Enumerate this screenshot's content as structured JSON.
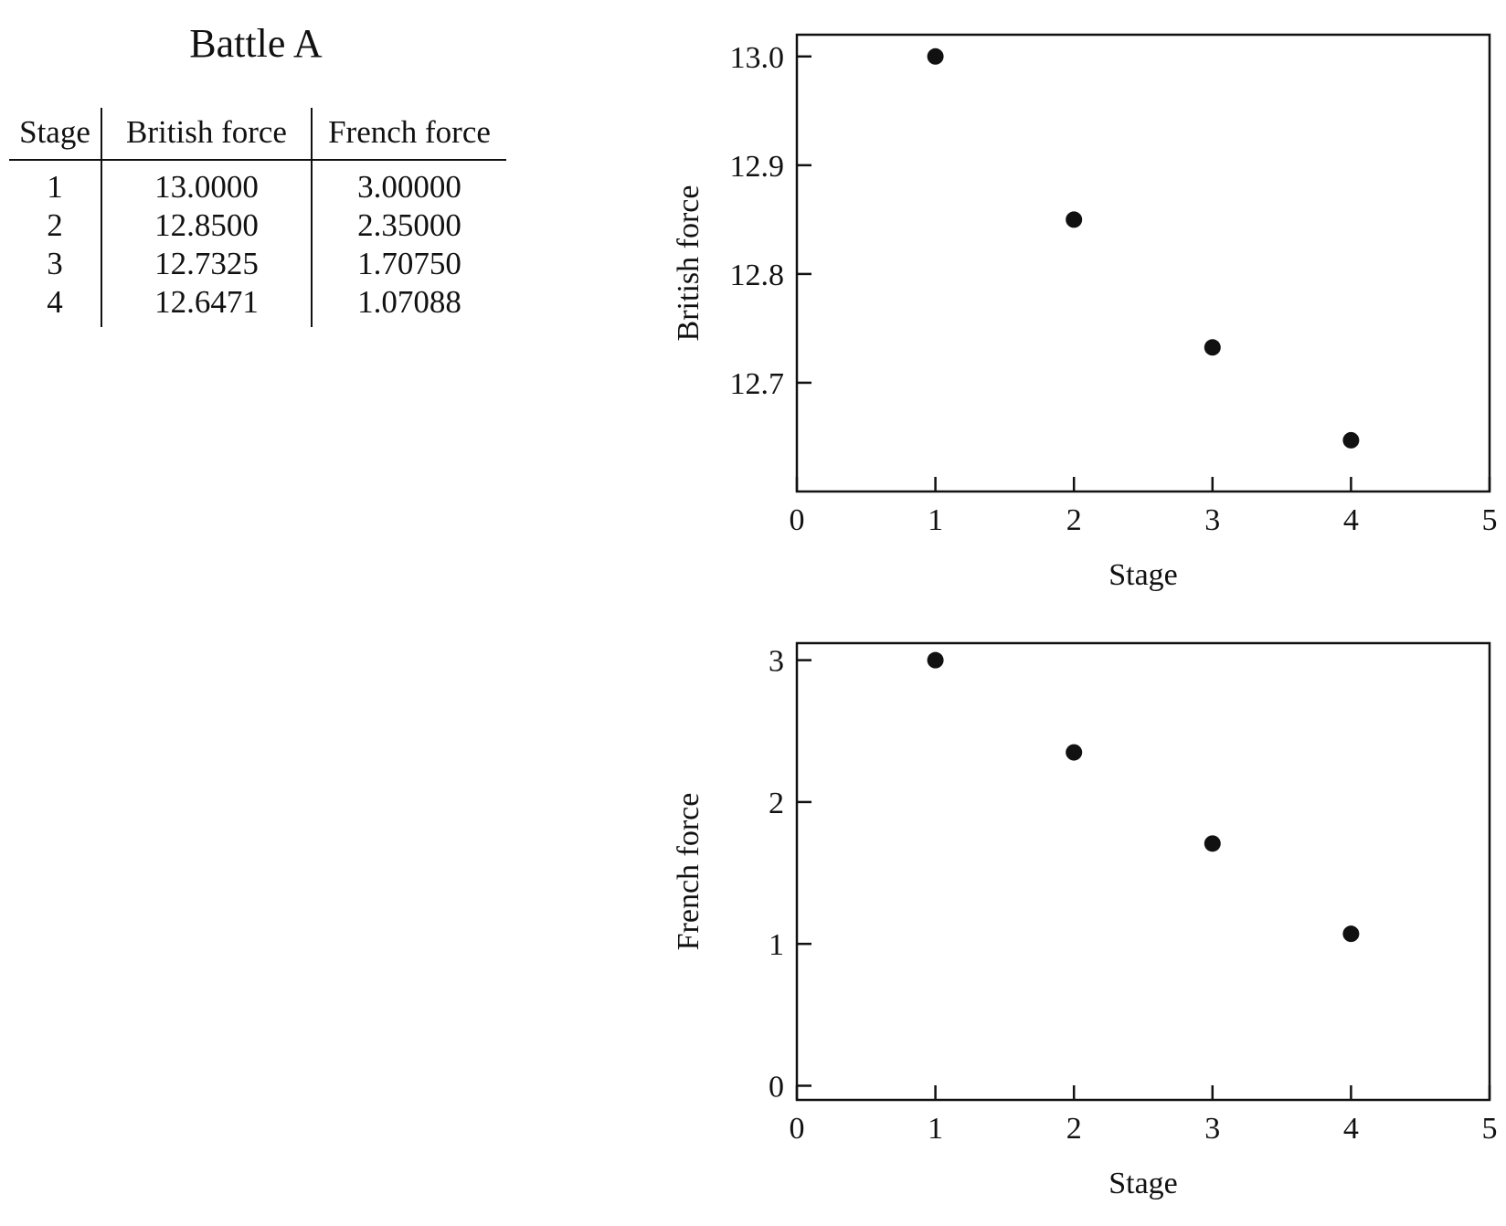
{
  "table": {
    "title": "Battle A",
    "headers": [
      "Stage",
      "British force",
      "French force"
    ],
    "rows": [
      [
        "1",
        "13.0000",
        "3.00000"
      ],
      [
        "2",
        "12.8500",
        "2.35000"
      ],
      [
        "3",
        "12.7325",
        "1.70750"
      ],
      [
        "4",
        "12.6471",
        "1.07088"
      ]
    ]
  },
  "chart_data": [
    {
      "type": "scatter",
      "xlabel": "Stage",
      "ylabel": "British force",
      "x": [
        1,
        2,
        3,
        4
      ],
      "y": [
        13.0,
        12.85,
        12.7325,
        12.6471
      ],
      "xlim": [
        0,
        5
      ],
      "ylim": [
        12.6,
        13.02
      ],
      "xticks": [
        0,
        1,
        2,
        3,
        4,
        5
      ],
      "xtick_labels": [
        "0",
        "1",
        "2",
        "3",
        "4",
        "5"
      ],
      "yticks": [
        12.7,
        12.8,
        12.9,
        13.0
      ],
      "ytick_labels": [
        "12.7",
        "12.8",
        "12.9",
        "13.0"
      ],
      "grid": false,
      "marker_color": "#111111"
    },
    {
      "type": "scatter",
      "xlabel": "Stage",
      "ylabel": "French force",
      "x": [
        1,
        2,
        3,
        4
      ],
      "y": [
        3.0,
        2.35,
        1.7075,
        1.07088
      ],
      "xlim": [
        0,
        5
      ],
      "ylim": [
        -0.1,
        3.12
      ],
      "xticks": [
        0,
        1,
        2,
        3,
        4,
        5
      ],
      "xtick_labels": [
        "0",
        "1",
        "2",
        "3",
        "4",
        "5"
      ],
      "yticks": [
        0,
        1,
        2,
        3
      ],
      "ytick_labels": [
        "0",
        "1",
        "2",
        "3"
      ],
      "grid": false,
      "marker_color": "#111111"
    }
  ]
}
